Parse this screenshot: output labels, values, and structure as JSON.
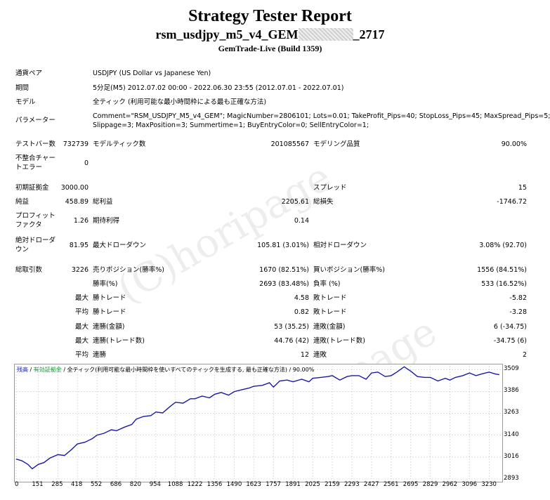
{
  "header": {
    "title": "Strategy Tester Report",
    "subtitle_prefix": "rsm_usdjpy_m5_v4_GEM",
    "subtitle_suffix": "_2717",
    "build": "GemTrade-Live (Build 1359)"
  },
  "info": {
    "pair_label": "通貨ペア",
    "pair_value": "USDJPY (US Dollar vs Japanese Yen)",
    "period_label": "期間",
    "period_value": "5分足(M5) 2012.07.02 00:00 - 2022.06.30 23:55 (2012.07.01 - 2022.07.01)",
    "model_label": "モデル",
    "model_value": "全ティック (利用可能な最小時間枠による最も正確な方法)",
    "params_label": "パラメーター",
    "params_line1": "Comment=\"RSM_USDJPY_M5_v4_GEM\"; MagicNumber=2806101; Lots=0.01; TakeProfit_Pips=40; StopLoss_Pips=45; MaxSpread_Pips=5;",
    "params_line2": "Slippage=3; MaxPosition=3; Summertime=1; BuyEntryColor=0; SellEntryColor=1;"
  },
  "bars": {
    "test_bars_label": "テストバー数",
    "test_bars_value": "732739",
    "model_ticks_label": "モデルティック数",
    "model_ticks_value": "201085567",
    "quality_label": "モデリング品質",
    "quality_value": "90.00%",
    "mismatch_label_1": "不整合チャー",
    "mismatch_label_2": "トエラー",
    "mismatch_value": "0"
  },
  "capital": {
    "deposit_label": "初期証拠金",
    "deposit_value": "3000.00",
    "spread_label": "スプレッド",
    "spread_value": "15"
  },
  "stats": {
    "net_label": "純益",
    "net_value": "458.89",
    "gross_profit_label": "総利益",
    "gross_profit_value": "2205.61",
    "gross_loss_label": "総損失",
    "gross_loss_value": "-1746.72",
    "pf_label_1": "プロフィット",
    "pf_label_2": "ファクタ",
    "pf_value": "1.26",
    "expected_label": "期待利得",
    "expected_value": "0.14",
    "abs_dd_label_1": "絶対ドローダ",
    "abs_dd_label_2": "ウン",
    "abs_dd_value": "81.95",
    "max_dd_label": "最大ドローダウン",
    "max_dd_value": "105.81 (3.01%)",
    "rel_dd_label": "相対ドローダウン",
    "rel_dd_value": "3.08% (92.70)"
  },
  "trades": {
    "total_label": "総取引数",
    "total_value": "3226",
    "short_label": "売りポジション(勝率%)",
    "short_value": "1670 (82.51%)",
    "long_label": "買いポジション(勝率%)",
    "long_value": "1556 (84.51%)",
    "win_rate_label": "勝率(%)",
    "win_rate_value": "2693 (83.48%)",
    "loss_rate_label": "負率 (%)",
    "loss_rate_value": "533 (16.52%)",
    "max_word": "最大",
    "avg_word": "平均",
    "max_win_label": "勝トレード",
    "max_win_value": "4.58",
    "max_loss_label": "敗トレード",
    "max_loss_value": "-5.82",
    "avg_win_label": "勝トレード",
    "avg_win_value": "0.82",
    "avg_loss_label": "敗トレード",
    "avg_loss_value": "-3.28",
    "max_cons_win_amt_label": "連勝(金額)",
    "max_cons_win_amt_value": "53 (35.25)",
    "max_cons_loss_amt_label": "連敗(金額)",
    "max_cons_loss_amt_value": "6 (-34.75)",
    "max_cons_win_cnt_label": "連勝(トレード数)",
    "max_cons_win_cnt_value": "44.76 (42)",
    "max_cons_loss_cnt_label": "連敗(トレード数)",
    "max_cons_loss_cnt_value": "-34.75 (6)",
    "avg_cons_win_label": "連勝",
    "avg_cons_win_value": "12",
    "avg_cons_loss_label": "連敗",
    "avg_cons_loss_value": "2"
  },
  "watermark": {
    "text": "(C)horipage"
  },
  "chart_legend": {
    "balance": "残高",
    "sep1": " / ",
    "equity": "有効証拠金",
    "sep2": " / ",
    "rest": "全ティック(利用可能な最小時間枠を使いすべてのティックを生成する, 最も正確な方法) / 90.00%"
  },
  "colors": {
    "line": "#1a1aa6",
    "grid": "#c8c8c8"
  },
  "chart_data": {
    "type": "line",
    "title": "",
    "xlabel": "",
    "ylabel": "",
    "x_ticks": [
      0,
      151,
      285,
      418,
      552,
      686,
      820,
      954,
      1088,
      1222,
      1356,
      1490,
      1623,
      1757,
      1891,
      2025,
      2159,
      2293,
      2427,
      2561,
      2695,
      2829,
      2962,
      3096,
      3230
    ],
    "y_ticks": [
      2893,
      3016,
      3140,
      3263,
      3386,
      3509
    ],
    "xlim": [
      0,
      3310
    ],
    "ylim": [
      2893,
      3530
    ],
    "grid": true,
    "series": [
      {
        "x": [
          0,
          40,
          80,
          110,
          151,
          190,
          230,
          285,
          330,
          380,
          418,
          470,
          520,
          552,
          600,
          650,
          686,
          740,
          790,
          820,
          870,
          920,
          954,
          1000,
          1050,
          1088,
          1140,
          1190,
          1222,
          1270,
          1320,
          1356,
          1400,
          1450,
          1490,
          1540,
          1590,
          1623,
          1680,
          1730,
          1757,
          1800,
          1850,
          1891,
          1950,
          2000,
          2025,
          2080,
          2130,
          2159,
          2210,
          2260,
          2293,
          2340,
          2390,
          2427,
          2470,
          2520,
          2561,
          2600,
          2650,
          2695,
          2740,
          2790,
          2829,
          2880,
          2930,
          2962,
          3000,
          3050,
          3096,
          3140,
          3180,
          3230,
          3270,
          3300
        ],
        "y": [
          3005,
          2995,
          2975,
          2950,
          2975,
          2985,
          3010,
          3030,
          3025,
          3060,
          3090,
          3100,
          3120,
          3140,
          3150,
          3170,
          3165,
          3185,
          3200,
          3230,
          3245,
          3250,
          3270,
          3265,
          3300,
          3325,
          3320,
          3345,
          3345,
          3360,
          3350,
          3370,
          3380,
          3365,
          3385,
          3395,
          3405,
          3415,
          3420,
          3435,
          3410,
          3445,
          3450,
          3440,
          3455,
          3440,
          3460,
          3465,
          3470,
          3475,
          3450,
          3470,
          3475,
          3475,
          3455,
          3490,
          3495,
          3470,
          3475,
          3495,
          3525,
          3500,
          3470,
          3465,
          3465,
          3445,
          3460,
          3450,
          3465,
          3475,
          3490,
          3475,
          3485,
          3495,
          3485,
          3480
        ]
      }
    ]
  }
}
